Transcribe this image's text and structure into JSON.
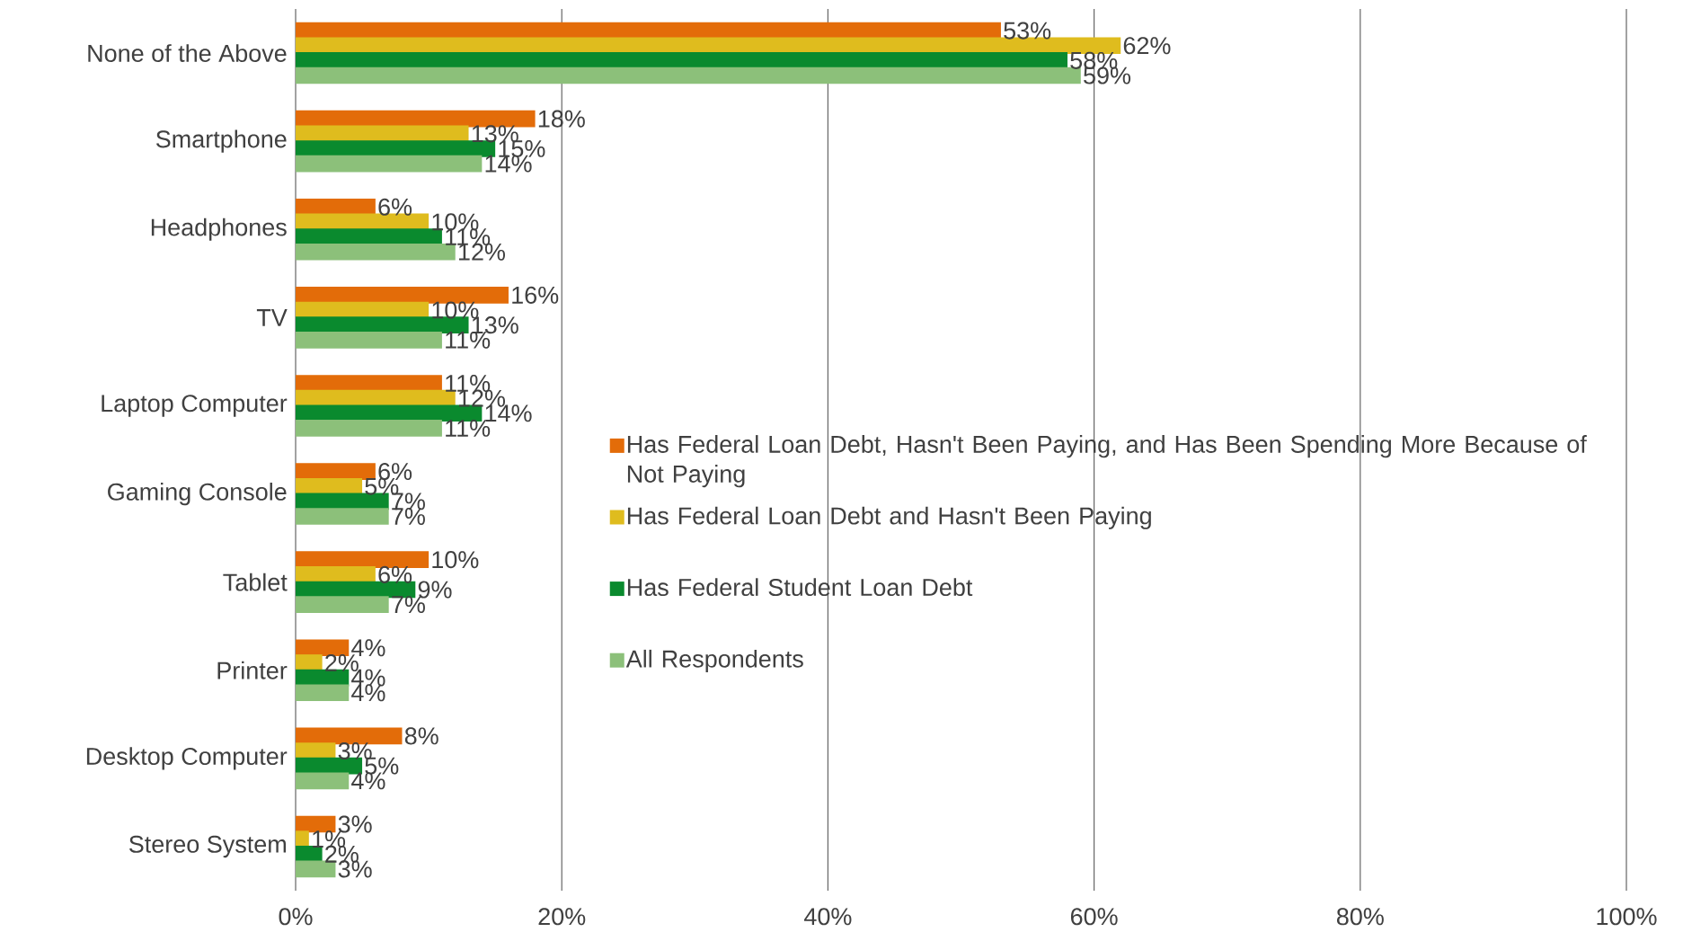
{
  "chart_data": {
    "type": "bar",
    "orientation": "horizontal",
    "categories": [
      "None of the Above",
      "Smartphone",
      "Headphones",
      "TV",
      "Laptop Computer",
      "Gaming Console",
      "Tablet",
      "Printer",
      "Desktop Computer",
      "Stereo System"
    ],
    "series": [
      {
        "name": "Has Federal Loan Debt, Hasn't Been Paying, and Has Been Spending More Because of Not Paying",
        "color": "#e36c09",
        "values": [
          53,
          18,
          6,
          16,
          11,
          6,
          10,
          4,
          8,
          3
        ],
        "value_labels": [
          "53%",
          "18%",
          "6%",
          "16%",
          "11%",
          "6%",
          "10%",
          "4%",
          "8%",
          "3%"
        ]
      },
      {
        "name": "Has Federal Loan Debt and Hasn't Been Paying",
        "color": "#dfbc1e",
        "values": [
          62,
          13,
          10,
          10,
          12,
          5,
          6,
          2,
          3,
          1
        ],
        "value_labels": [
          "62%",
          "13%",
          "10%",
          "10%",
          "12%",
          "5%",
          "6%",
          "2%",
          "3%",
          "1%"
        ]
      },
      {
        "name": "Has Federal Student Loan Debt",
        "color": "#0a8a2e",
        "values": [
          58,
          15,
          11,
          13,
          14,
          7,
          9,
          4,
          5,
          2
        ],
        "value_labels": [
          "58%",
          "15%",
          "11%",
          "13%",
          "14%",
          "7%",
          "9%",
          "4%",
          "5%",
          "2%"
        ]
      },
      {
        "name": "All Respondents",
        "color": "#8cc07a",
        "values": [
          59,
          14,
          12,
          11,
          11,
          7,
          7,
          4,
          4,
          3
        ],
        "value_labels": [
          "59%",
          "14%",
          "12%",
          "11%",
          "11%",
          "7%",
          "7%",
          "4%",
          "4%",
          "3%"
        ]
      }
    ],
    "xlim": [
      0,
      100
    ],
    "xticks": [
      {
        "value": 0,
        "label": "0%"
      },
      {
        "value": 20,
        "label": "20%"
      },
      {
        "value": 40,
        "label": "40%"
      },
      {
        "value": 60,
        "label": "60%"
      },
      {
        "value": 80,
        "label": "80%"
      },
      {
        "value": 100,
        "label": "100%"
      }
    ],
    "grid": "x",
    "legend": "right"
  }
}
